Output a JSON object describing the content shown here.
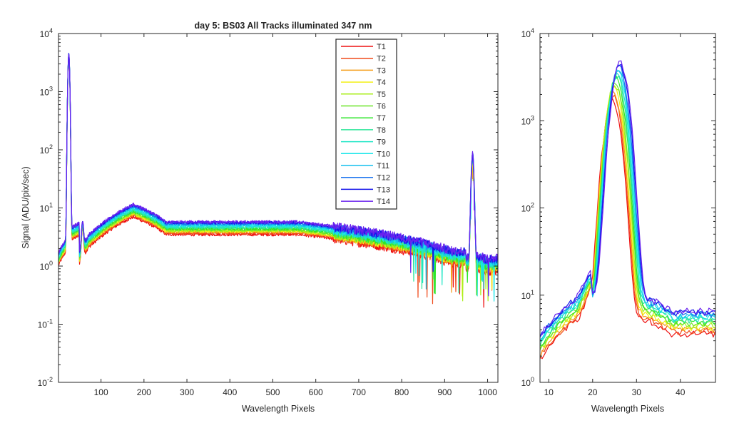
{
  "chart_data": [
    {
      "type": "line",
      "title": "day 5: BS03   All Tracks illuminated   347 nm",
      "xlabel": "Wavelength Pixels",
      "ylabel": "Signal (ADU/pix/sec)",
      "xlim": [
        1,
        1024
      ],
      "ylim": [
        0.01,
        10000
      ],
      "yscale": "log",
      "xticks": [
        100,
        200,
        300,
        400,
        500,
        600,
        700,
        800,
        900,
        1000
      ],
      "yticks": [
        0.01,
        0.1,
        1,
        10,
        100,
        1000,
        10000
      ],
      "yticklabels": [
        {
          "b": "10",
          "e": "-2"
        },
        {
          "b": "10",
          "e": "-1"
        },
        {
          "b": "10",
          "e": "0"
        },
        {
          "b": "10",
          "e": "1"
        },
        {
          "b": "10",
          "e": "2"
        },
        {
          "b": "10",
          "e": "3"
        },
        {
          "b": "10",
          "e": "4"
        }
      ],
      "legend_position": "top-right-inside",
      "grid": false,
      "features": {
        "peak1": {
          "x": 25,
          "max_value": 4600
        },
        "peak2": {
          "x": 965,
          "max_value": 85
        },
        "hump": {
          "x": 175,
          "value": 10
        }
      },
      "series": [
        {
          "name": "T1",
          "color": "#ee1111",
          "scale": 0.7
        },
        {
          "name": "T2",
          "color": "#f04a1a",
          "scale": 0.74
        },
        {
          "name": "T3",
          "color": "#f59c16",
          "scale": 0.78
        },
        {
          "name": "T4",
          "color": "#f3f014",
          "scale": 0.8
        },
        {
          "name": "T5",
          "color": "#a8ee1a",
          "scale": 0.82
        },
        {
          "name": "T6",
          "color": "#6ee62a",
          "scale": 0.85
        },
        {
          "name": "T7",
          "color": "#2ee62a",
          "scale": 0.88
        },
        {
          "name": "T8",
          "color": "#2de69a",
          "scale": 0.92
        },
        {
          "name": "T9",
          "color": "#22e6c6",
          "scale": 0.96
        },
        {
          "name": "T10",
          "color": "#1ae6ea",
          "scale": 1.0
        },
        {
          "name": "T11",
          "color": "#14bfee",
          "scale": 1.04
        },
        {
          "name": "T12",
          "color": "#1a73ee",
          "scale": 1.08
        },
        {
          "name": "T13",
          "color": "#1414ea",
          "scale": 1.12
        },
        {
          "name": "T14",
          "color": "#6a22ee",
          "scale": 1.15
        }
      ]
    },
    {
      "type": "line",
      "title": "",
      "xlabel": "Wavelength Pixels",
      "ylabel": "",
      "xlim": [
        8,
        48
      ],
      "ylim": [
        1,
        10000
      ],
      "yscale": "log",
      "xticks": [
        10,
        20,
        30,
        40
      ],
      "yticks": [
        1,
        10,
        100,
        1000,
        10000
      ],
      "yticklabels": [
        {
          "b": "10",
          "e": "0"
        },
        {
          "b": "10",
          "e": "1"
        },
        {
          "b": "10",
          "e": "2"
        },
        {
          "b": "10",
          "e": "3"
        },
        {
          "b": "10",
          "e": "4"
        }
      ],
      "grid": false,
      "description_of_data": "zoom on first peak near pixel 25; baseline ~3 at x=8, ~14 at x=19, peak 1600-4600 near x=25-26, ~5-8 at x=30-48",
      "series_ref": "same 14 tracks T1-T14"
    }
  ]
}
